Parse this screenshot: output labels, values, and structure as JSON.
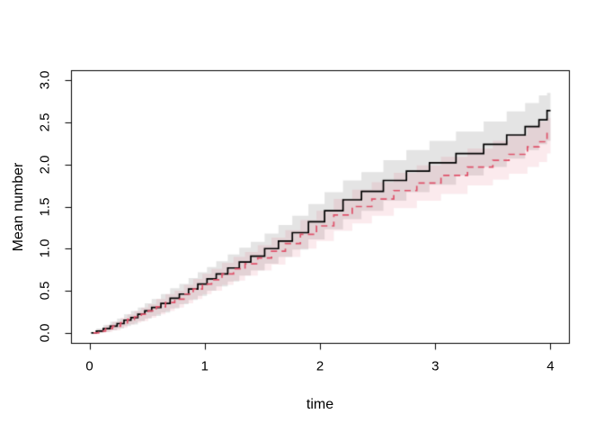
{
  "figure": {
    "background": "#ffffff"
  },
  "chart_data": {
    "type": "line",
    "variant": "step-function-with-confidence-bands",
    "title": "",
    "xlabel": "time",
    "ylabel": "Mean number",
    "xlim": [
      0,
      4
    ],
    "ylim": [
      0,
      3
    ],
    "grid": false,
    "legend": "none",
    "axis_color": "#000000",
    "x_ticks": {
      "values": [
        0,
        1,
        2,
        3,
        4
      ],
      "labels": [
        "0",
        "1",
        "2",
        "3",
        "4"
      ]
    },
    "y_ticks": {
      "values": [
        0,
        0.5,
        1,
        1.5,
        2,
        2.5,
        3
      ],
      "labels": [
        "0.0",
        "0.5",
        "1.0",
        "1.5",
        "2.0",
        "2.5",
        "3.0"
      ]
    },
    "series": [
      {
        "id": "mcf-solid-black",
        "line_color": "#000000",
        "line_style": "solid",
        "band_fill": "rgba(0,0,0,0.105)",
        "times": [
          0.06,
          0.12,
          0.18,
          0.24,
          0.3,
          0.36,
          0.42,
          0.48,
          0.54,
          0.62,
          0.7,
          0.78,
          0.86,
          0.94,
          1.02,
          1.1,
          1.2,
          1.3,
          1.4,
          1.52,
          1.64,
          1.76,
          1.9,
          2.04,
          2.2,
          2.36,
          2.55,
          2.75,
          2.95,
          3.18,
          3.42,
          3.62,
          3.78,
          3.9,
          3.97
        ],
        "mean": [
          0.02,
          0.05,
          0.08,
          0.11,
          0.15,
          0.18,
          0.22,
          0.26,
          0.3,
          0.35,
          0.41,
          0.46,
          0.52,
          0.58,
          0.64,
          0.7,
          0.77,
          0.84,
          0.91,
          1.0,
          1.09,
          1.19,
          1.32,
          1.45,
          1.58,
          1.68,
          1.81,
          1.92,
          2.02,
          2.13,
          2.24,
          2.35,
          2.45,
          2.53,
          2.64
        ],
        "lower": [
          0.0,
          0.01,
          0.03,
          0.05,
          0.08,
          0.1,
          0.14,
          0.17,
          0.2,
          0.24,
          0.29,
          0.34,
          0.39,
          0.44,
          0.5,
          0.55,
          0.61,
          0.68,
          0.74,
          0.82,
          0.9,
          0.99,
          1.11,
          1.23,
          1.35,
          1.45,
          1.57,
          1.67,
          1.76,
          1.87,
          1.97,
          2.07,
          2.17,
          2.24,
          2.28
        ],
        "upper": [
          0.05,
          0.09,
          0.13,
          0.17,
          0.22,
          0.26,
          0.3,
          0.35,
          0.4,
          0.46,
          0.53,
          0.58,
          0.65,
          0.72,
          0.78,
          0.85,
          0.93,
          1.01,
          1.08,
          1.18,
          1.28,
          1.39,
          1.53,
          1.67,
          1.81,
          1.91,
          2.05,
          2.17,
          2.28,
          2.39,
          2.51,
          2.63,
          2.73,
          2.82,
          2.85
        ]
      },
      {
        "id": "mcf-dashed-red",
        "line_color": "#DF536B",
        "line_style": "dashed",
        "band_fill": "rgba(223,83,107,0.12)",
        "times": [
          0.08,
          0.14,
          0.2,
          0.27,
          0.33,
          0.39,
          0.45,
          0.51,
          0.58,
          0.66,
          0.74,
          0.82,
          0.9,
          0.98,
          1.06,
          1.15,
          1.25,
          1.35,
          1.46,
          1.58,
          1.7,
          1.83,
          1.97,
          2.12,
          2.28,
          2.45,
          2.64,
          2.84,
          3.05,
          3.28,
          3.5,
          3.64,
          3.8,
          3.9,
          3.97
        ],
        "mean": [
          0.02,
          0.05,
          0.08,
          0.12,
          0.16,
          0.19,
          0.22,
          0.26,
          0.31,
          0.36,
          0.4,
          0.46,
          0.52,
          0.58,
          0.63,
          0.7,
          0.76,
          0.82,
          0.89,
          0.97,
          1.06,
          1.17,
          1.27,
          1.4,
          1.5,
          1.59,
          1.69,
          1.78,
          1.87,
          1.97,
          2.05,
          2.12,
          2.21,
          2.27,
          2.38
        ],
        "lower": [
          0.0,
          0.01,
          0.03,
          0.06,
          0.1,
          0.12,
          0.14,
          0.18,
          0.22,
          0.26,
          0.3,
          0.35,
          0.4,
          0.46,
          0.5,
          0.57,
          0.62,
          0.68,
          0.74,
          0.81,
          0.9,
          1.0,
          1.09,
          1.21,
          1.3,
          1.39,
          1.48,
          1.57,
          1.65,
          1.75,
          1.82,
          1.89,
          1.97,
          2.03,
          2.13
        ],
        "upper": [
          0.04,
          0.09,
          0.13,
          0.18,
          0.22,
          0.26,
          0.3,
          0.34,
          0.4,
          0.46,
          0.5,
          0.57,
          0.64,
          0.7,
          0.76,
          0.83,
          0.9,
          0.96,
          1.04,
          1.13,
          1.22,
          1.34,
          1.45,
          1.59,
          1.7,
          1.79,
          1.9,
          1.99,
          2.09,
          2.19,
          2.28,
          2.35,
          2.45,
          2.51,
          2.55
        ]
      }
    ]
  }
}
